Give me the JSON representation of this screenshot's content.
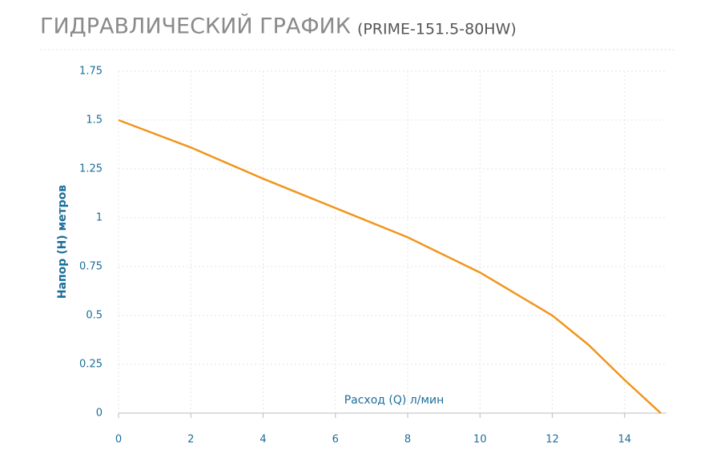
{
  "chart_data": {
    "type": "line",
    "title": "ГИДРАВЛИЧЕСКИЙ ГРАФИК",
    "subtitle": "(PRIME-151.5-80HW)",
    "x_label": "Расход (Q) л/мин",
    "y_label": "Напор (H) метров",
    "x": [
      0,
      2,
      4,
      6,
      8,
      10,
      12,
      13,
      14,
      15
    ],
    "series": [
      {
        "name": "PRIME-151.5-80HW",
        "color": "#f0961e",
        "values": [
          1.5,
          1.36,
          1.2,
          1.05,
          0.9,
          0.72,
          0.5,
          0.35,
          0.17,
          0
        ]
      }
    ],
    "xlim": [
      0,
      15
    ],
    "ylim": [
      0,
      1.75
    ],
    "xticks": [
      0,
      2,
      4,
      6,
      8,
      10,
      12,
      14
    ],
    "yticks": [
      0,
      0.25,
      0.5,
      0.75,
      1,
      1.25,
      1.5,
      1.75
    ],
    "grid": true
  }
}
